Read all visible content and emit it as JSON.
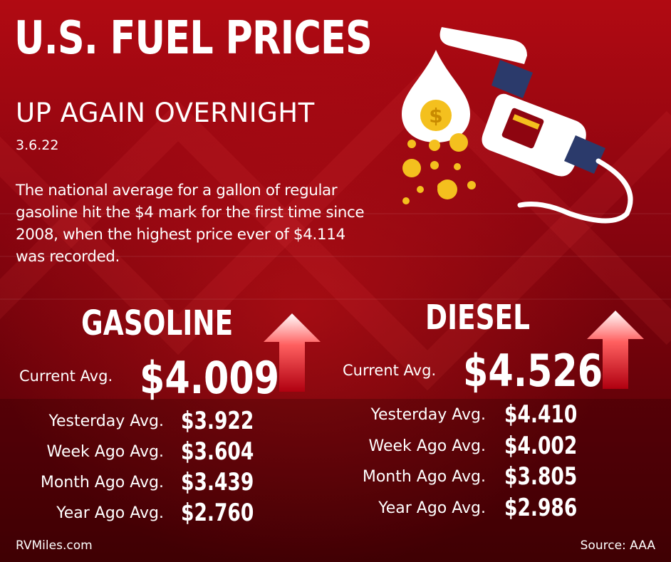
{
  "header": {
    "title": "U.S. FUEL PRICES",
    "subtitle": "UP AGAIN OVERNIGHT",
    "date": "3.6.22",
    "blurb": "The national average for a  gallon of regular gasoline hit the $4 mark for the first time since 2008, when the highest price ever of $4.114 was recorded."
  },
  "gasoline": {
    "title": "GASOLINE",
    "current_label": "Current Avg.",
    "current_value": "$4.009",
    "rows": [
      {
        "label": "Yesterday Avg.",
        "value": "$3.922"
      },
      {
        "label": "Week Ago Avg.",
        "value": "$3.604"
      },
      {
        "label": "Month Ago Avg.",
        "value": "$3.439"
      },
      {
        "label": "Year Ago Avg.",
        "value": "$2.760"
      }
    ]
  },
  "diesel": {
    "title": "DIESEL",
    "current_label": "Current Avg.",
    "current_value": "$4.526",
    "rows": [
      {
        "label": "Yesterday Avg.",
        "value": "$4.410"
      },
      {
        "label": "Week Ago Avg.",
        "value": "$4.002"
      },
      {
        "label": "Month Ago Avg.",
        "value": "$3.805"
      },
      {
        "label": "Year Ago Avg.",
        "value": "$2.986"
      }
    ]
  },
  "footer": {
    "credit": "RVMiles.com",
    "source": "Source: AAA"
  },
  "icons": {
    "pump": "fuel-pump-nozzle-icon",
    "drop": "fuel-drop-dollar-icon",
    "arrow": "up-arrow-icon"
  },
  "colors": {
    "background": "#8e0510",
    "text": "#ffffff",
    "nozzle_band": "#2b3a6b",
    "coin": "#f4c01e",
    "arrow": "#e0101a"
  }
}
